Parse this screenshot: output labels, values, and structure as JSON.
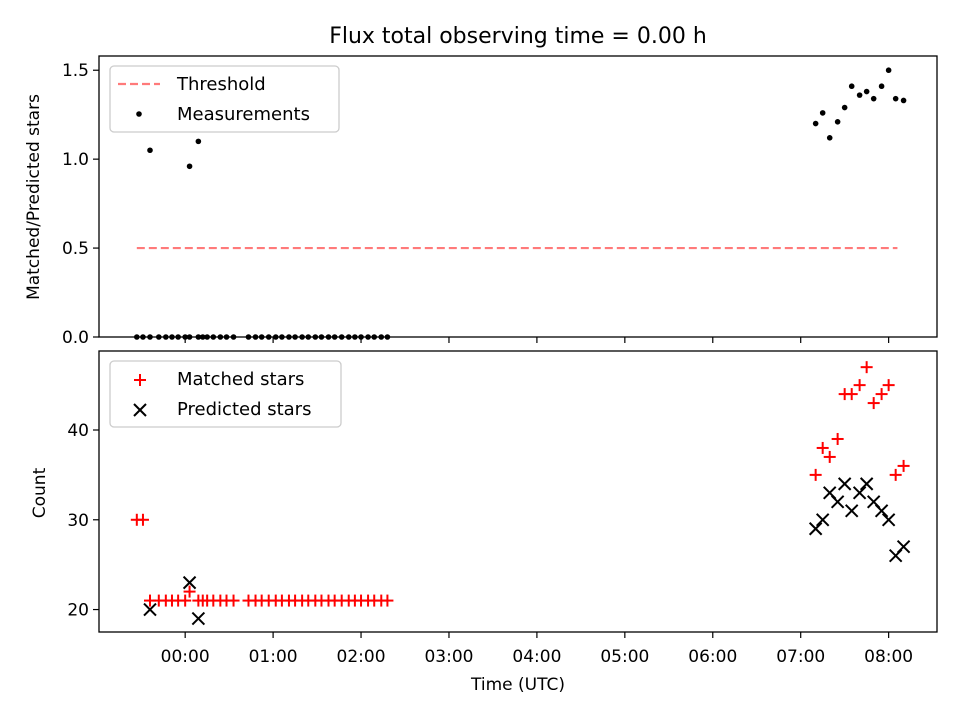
{
  "chart_data": [
    {
      "type": "scatter",
      "title": "Flux total observing time = 0.00 h",
      "xlabel": "",
      "ylabel": "Matched/Predicted stars",
      "ylim": [
        0,
        1.58
      ],
      "xlim": [
        -0.98,
        8.55
      ],
      "yticks": [
        0,
        0.5,
        1.0,
        1.5
      ],
      "ytick_labels": [
        "0.0",
        "0.5",
        "1.0",
        "1.5"
      ],
      "xticks": [
        0,
        1,
        2,
        3,
        4,
        5,
        6,
        7,
        8
      ],
      "xtick_labels": [
        "",
        "",
        "",
        "",
        "",
        "",
        "",
        "",
        ""
      ],
      "legend_position": "top-left",
      "threshold": {
        "name": "Threshold",
        "value": 0.5,
        "x_range": [
          -0.55,
          8.1
        ],
        "color": "#ff7a7a"
      },
      "series": [
        {
          "name": "Measurements",
          "marker": "dot",
          "color": "#000000",
          "x": [
            -0.55,
            -0.48,
            -0.4,
            -0.3,
            -0.22,
            -0.15,
            -0.08,
            0.0,
            0.05,
            0.15,
            0.2,
            0.25,
            0.32,
            0.4,
            0.47,
            0.55,
            0.72,
            0.8,
            0.87,
            0.95,
            1.03,
            1.1,
            1.18,
            1.25,
            1.33,
            1.4,
            1.48,
            1.55,
            1.63,
            1.7,
            1.78,
            1.86,
            1.93,
            2.0,
            2.08,
            2.15,
            2.23,
            2.3,
            -0.4,
            0.05,
            0.15,
            7.17,
            7.25,
            7.33,
            7.42,
            7.5,
            7.58,
            7.67,
            7.75,
            7.83,
            7.92,
            8.0,
            8.08,
            8.17
          ],
          "y": [
            0,
            0,
            0,
            0,
            0,
            0,
            0,
            0,
            0,
            0,
            0,
            0,
            0,
            0,
            0,
            0,
            0,
            0,
            0,
            0,
            0,
            0,
            0,
            0,
            0,
            0,
            0,
            0,
            0,
            0,
            0,
            0,
            0,
            0,
            0,
            0,
            0,
            0,
            1.05,
            0.96,
            1.1,
            1.2,
            1.26,
            1.12,
            1.21,
            1.29,
            1.41,
            1.36,
            1.38,
            1.34,
            1.41,
            1.5,
            1.34,
            1.33
          ]
        }
      ]
    },
    {
      "type": "scatter",
      "title": "",
      "xlabel": "Time (UTC)",
      "ylabel": "Count",
      "ylim": [
        17.5,
        48.8
      ],
      "xlim": [
        -0.98,
        8.55
      ],
      "yticks": [
        20,
        30,
        40
      ],
      "ytick_labels": [
        "20",
        "30",
        "40"
      ],
      "xticks": [
        0,
        1,
        2,
        3,
        4,
        5,
        6,
        7,
        8
      ],
      "xtick_labels": [
        "00:00",
        "01:00",
        "02:00",
        "03:00",
        "04:00",
        "05:00",
        "06:00",
        "07:00",
        "08:00"
      ],
      "legend_position": "top-left",
      "series": [
        {
          "name": "Matched stars",
          "marker": "plus",
          "color": "#ff0000",
          "x": [
            -0.55,
            -0.48,
            -0.4,
            -0.3,
            -0.22,
            -0.15,
            -0.08,
            0.0,
            0.05,
            0.15,
            0.2,
            0.25,
            0.32,
            0.4,
            0.47,
            0.55,
            0.72,
            0.8,
            0.87,
            0.95,
            1.03,
            1.1,
            1.18,
            1.25,
            1.33,
            1.4,
            1.48,
            1.55,
            1.63,
            1.7,
            1.78,
            1.86,
            1.93,
            2.0,
            2.08,
            2.15,
            2.23,
            2.3,
            7.17,
            7.25,
            7.33,
            7.42,
            7.5,
            7.58,
            7.67,
            7.75,
            7.83,
            7.92,
            8.0,
            8.08,
            8.17
          ],
          "y": [
            30,
            30,
            21,
            21,
            21,
            21,
            21,
            21,
            22,
            21,
            21,
            21,
            21,
            21,
            21,
            21,
            21,
            21,
            21,
            21,
            21,
            21,
            21,
            21,
            21,
            21,
            21,
            21,
            21,
            21,
            21,
            21,
            21,
            21,
            21,
            21,
            21,
            21,
            35,
            38,
            37,
            39,
            44,
            44,
            45,
            47,
            43,
            44,
            45,
            35,
            36
          ]
        },
        {
          "name": "Predicted stars",
          "marker": "x",
          "color": "#000000",
          "x": [
            -0.4,
            0.05,
            0.15,
            7.17,
            7.25,
            7.33,
            7.42,
            7.5,
            7.58,
            7.67,
            7.75,
            7.83,
            7.92,
            8.0,
            8.08,
            8.17
          ],
          "y": [
            20,
            23,
            19,
            29,
            30,
            33,
            32,
            34,
            31,
            33,
            34,
            32,
            31,
            30,
            26,
            27
          ]
        }
      ]
    }
  ]
}
